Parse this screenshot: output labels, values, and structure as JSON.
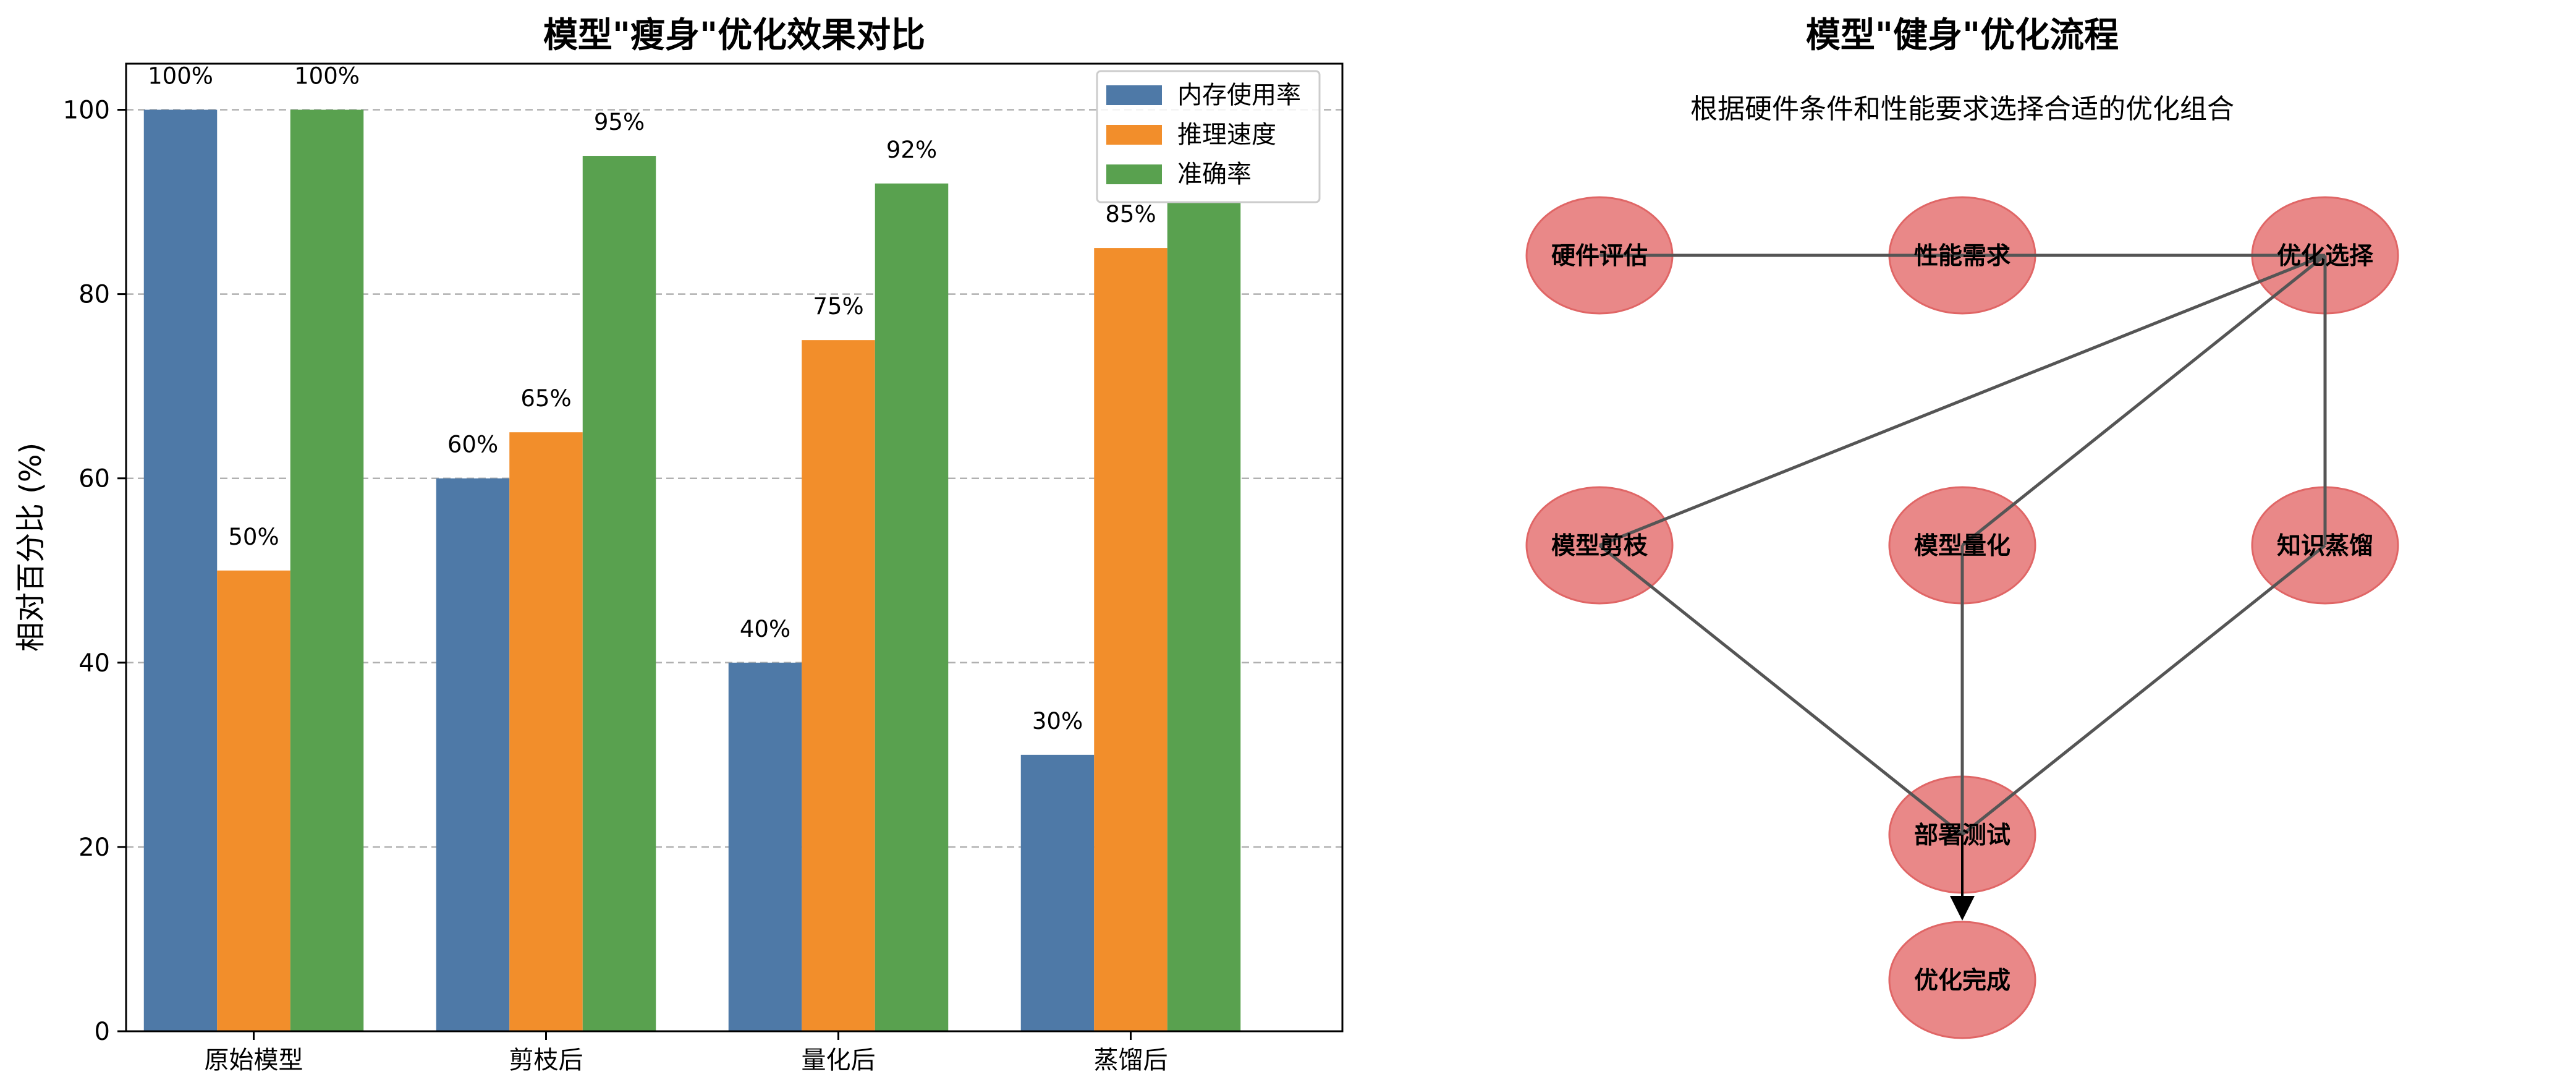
{
  "chart_data": [
    {
      "type": "bar",
      "title": "模型\"瘦身\"优化效果对比",
      "xlabel": "",
      "ylabel": "相对百分比 (%)",
      "categories": [
        "原始模型",
        "剪枝后",
        "量化后",
        "蒸馏后"
      ],
      "series": [
        {
          "name": "内存使用率",
          "values": [
            100,
            60,
            40,
            30
          ],
          "color": "#4e79a7"
        },
        {
          "name": "推理速度",
          "values": [
            50,
            65,
            75,
            85
          ],
          "color": "#f28e2b"
        },
        {
          "name": "准确率",
          "values": [
            100,
            95,
            92,
            90
          ],
          "color": "#59a14f"
        }
      ],
      "bar_labels": [
        [
          "100%",
          "60%",
          "40%",
          "30%"
        ],
        [
          "50%",
          "65%",
          "75%",
          "85%"
        ],
        [
          "100%",
          "95%",
          "92%",
          ""
        ]
      ],
      "ylim": [
        0,
        105
      ],
      "yticks": [
        0,
        20,
        40,
        60,
        80,
        100
      ],
      "grid": "y-dashed",
      "legend": "top-right"
    },
    {
      "type": "diagram",
      "title": "模型\"健身\"优化流程",
      "subtitle": "根据硬件条件和性能要求选择合适的优化组合",
      "node_color": "#e57373",
      "nodes": [
        {
          "id": "hw",
          "label": "硬件评估"
        },
        {
          "id": "perf",
          "label": "性能需求"
        },
        {
          "id": "opt",
          "label": "优化选择"
        },
        {
          "id": "prune",
          "label": "模型剪枝"
        },
        {
          "id": "quant",
          "label": "模型量化"
        },
        {
          "id": "distill",
          "label": "知识蒸馏"
        },
        {
          "id": "deploy",
          "label": "部署测试"
        },
        {
          "id": "done",
          "label": "优化完成"
        }
      ],
      "edges": [
        [
          "hw",
          "opt"
        ],
        [
          "perf",
          "opt"
        ],
        [
          "opt",
          "prune"
        ],
        [
          "opt",
          "quant"
        ],
        [
          "opt",
          "distill"
        ],
        [
          "prune",
          "deploy"
        ],
        [
          "quant",
          "deploy"
        ],
        [
          "distill",
          "deploy"
        ],
        [
          "deploy",
          "done"
        ]
      ]
    }
  ]
}
